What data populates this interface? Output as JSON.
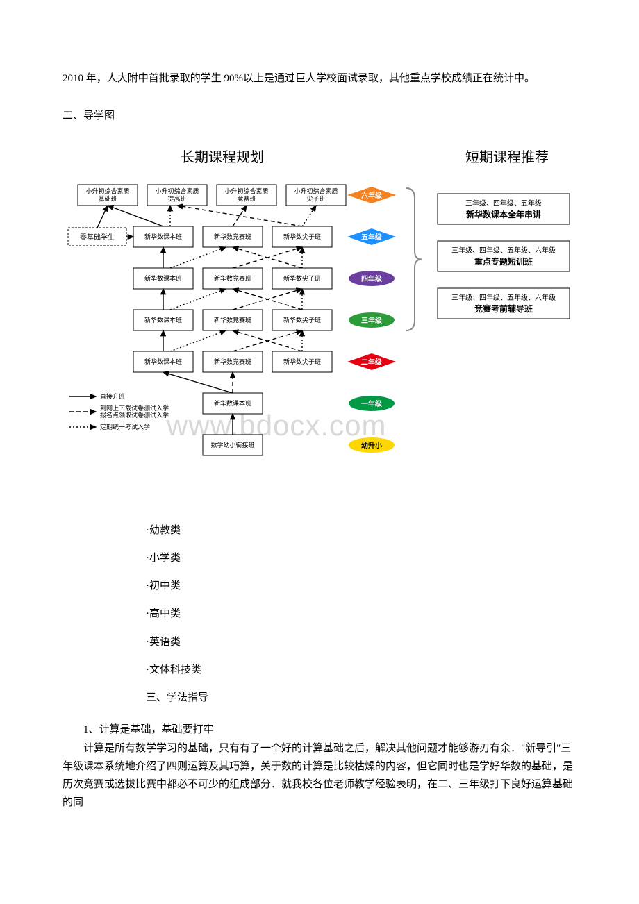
{
  "intro_paragraph": "2010 年，人大附中首批录取的学生 90%以上是通过巨人学校面试录取，其他重点学校成绩正在统计中。",
  "section_2_title": "二、导学图",
  "diagram": {
    "left_title": "长期课程规划",
    "right_title": "短期课程推荐",
    "font_title": 20,
    "grade_rows": [
      {
        "grade": "六年级",
        "color": "#f58220",
        "boxes": [
          "小升初综合素质\n基础班",
          "小升初综合素质\n提高班",
          "小升初综合素质\n竞赛班",
          "小升初综合素质\n尖子班"
        ],
        "shape": "diamond"
      },
      {
        "grade": "五年级",
        "color": "#1e90ff",
        "boxes": [
          "新华数课本班",
          "新华数竞赛班",
          "新华数尖子班"
        ],
        "shape": "diamond"
      },
      {
        "grade": "四年级",
        "color": "#6a3fa0",
        "boxes": [
          "新华数课本班",
          "新华数竞赛班",
          "新华数尖子班"
        ],
        "shape": "oval"
      },
      {
        "grade": "三年级",
        "color": "#2d9b3a",
        "boxes": [
          "新华数课本班",
          "新华数竞赛班",
          "新华数尖子班"
        ],
        "shape": "oval"
      },
      {
        "grade": "二年级",
        "color": "#e60012",
        "boxes": [
          "新华数课本班",
          "新华数竞赛班",
          "新华数尖子班"
        ],
        "shape": "diamond"
      },
      {
        "grade": "一年级",
        "color": "#009944",
        "boxes": [
          "新华数课本班"
        ],
        "shape": "oval"
      },
      {
        "grade": "幼升小",
        "color": "#ffd700",
        "text_color": "#000",
        "boxes": [
          "数学幼小衔接班"
        ],
        "shape": "oval"
      }
    ],
    "zero_base_box": "零基础学生",
    "legend": [
      {
        "label": "直接升班",
        "style": "solid"
      },
      {
        "label": "到网上下载试卷测试入学\n报名点领取试卷测试入学",
        "style": "dashed"
      },
      {
        "label": "定期统一考试入学",
        "style": "dotted"
      }
    ],
    "short_term": [
      {
        "line1": "三年级、四年级、五年级",
        "line2": "新华数课本全年串讲"
      },
      {
        "line1": "三年级、四年级、五年级、六年级",
        "line2": "重点专题短训班"
      },
      {
        "line1": "三年级、四年级、五年级、六年级",
        "line2": "竞赛考前辅导班"
      }
    ],
    "colors": {
      "brace": "#888888",
      "node_border": "#000000",
      "node_fill": "#ffffff",
      "arrow": "#000000"
    }
  },
  "cat_list": [
    "·幼教类",
    "·小学类",
    "·初中类",
    "·高中类",
    "·英语类",
    "·文体科技类"
  ],
  "section_3_title": "三、学法指导",
  "para_1_title": "1、计算是基础，基础要打牢",
  "para_1_body": "　　计算是所有数学学习的基础，只有有了一个好的计算基础之后，解决其他问题才能够游刃有余．\"新导引\"三年级课本系统地介绍了四则运算及其巧算，关于数的计算是比较枯燥的内容，但它同时也是学好华数的基础，是历次竞赛或选拔比赛中都必不可少的组成部分．就我校各位老师教学经验表明，在二、三年级打下良好运算基础的同",
  "watermark_text": "www.bdocx.com"
}
